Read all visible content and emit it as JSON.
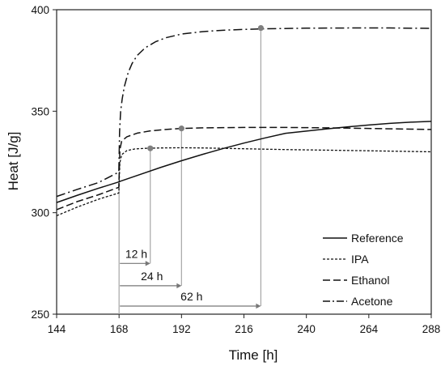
{
  "chart_data": {
    "type": "line",
    "title": "",
    "xlabel": "Time [h]",
    "ylabel": "Heat  [J/g]",
    "xlim": [
      144,
      288
    ],
    "ylim": [
      250,
      400
    ],
    "x_ticks": [
      144,
      168,
      192,
      216,
      240,
      264,
      288
    ],
    "y_ticks": [
      250,
      300,
      350,
      400
    ],
    "grid": false,
    "legend_position": "bottom-right",
    "series": [
      {
        "name": "Reference",
        "style": "solid",
        "x": [
          144,
          152,
          160,
          168,
          168.5,
          176,
          184,
          192,
          200,
          208,
          216,
          224,
          232,
          240,
          248,
          256,
          264,
          272,
          280,
          288
        ],
        "y": [
          305,
          308.6,
          312,
          315.2,
          315.5,
          318.8,
          322.3,
          325.6,
          328.7,
          331.6,
          334.3,
          336.8,
          339.1,
          340.2,
          341.3,
          342.3,
          343.2,
          344,
          344.6,
          345
        ]
      },
      {
        "name": "IPA",
        "style": "dotted",
        "x": [
          144,
          152,
          160,
          167.9,
          168.3,
          169,
          171,
          174,
          178,
          184,
          192,
          200,
          216,
          232,
          248,
          264,
          288
        ],
        "y": [
          298.5,
          302.8,
          306.6,
          309.7,
          324.5,
          328.6,
          330.6,
          331.4,
          331.7,
          331.9,
          332,
          331.9,
          331.5,
          331.1,
          330.8,
          330.5,
          330
        ]
      },
      {
        "name": "Ethanol",
        "style": "dashed",
        "x": [
          144,
          152,
          160,
          167.9,
          168.3,
          169,
          171,
          175,
          180,
          186,
          192,
          200,
          208,
          216,
          232,
          248,
          264,
          288
        ],
        "y": [
          301.5,
          305.5,
          308.8,
          312.5,
          331,
          335.3,
          337.4,
          339.2,
          340.3,
          341,
          341.5,
          341.8,
          341.9,
          342,
          342,
          341.8,
          341.5,
          341
        ]
      },
      {
        "name": "Acetone",
        "style": "dashdot",
        "x": [
          144,
          152,
          160,
          167.9,
          168.2,
          168.6,
          169.2,
          170,
          171.5,
          173,
          175,
          178,
          182,
          186,
          192,
          200,
          208,
          216,
          224,
          240,
          256,
          272,
          288
        ],
        "y": [
          308,
          311.5,
          314.8,
          320,
          340,
          350,
          356,
          362,
          369,
          373.5,
          377.5,
          381.2,
          384.2,
          386.2,
          388,
          389.2,
          389.9,
          390.3,
          390.6,
          390.9,
          391,
          391,
          390.8
        ]
      }
    ],
    "markers": [
      {
        "x": 180,
        "y": 331.7
      },
      {
        "x": 192,
        "y": 341.5
      },
      {
        "x": 222.5,
        "y": 391
      }
    ],
    "annotations": [
      {
        "label": "12 h",
        "x_start": 168,
        "x_end": 180,
        "y": 275
      },
      {
        "label": "24 h",
        "x_start": 168,
        "x_end": 192,
        "y": 264
      },
      {
        "label": "62 h",
        "x_start": 168,
        "x_end": 222.5,
        "y": 254
      }
    ]
  }
}
